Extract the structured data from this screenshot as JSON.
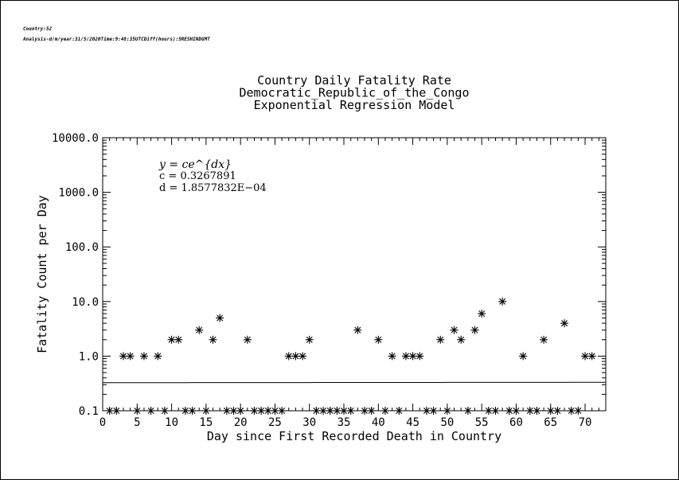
{
  "header": {
    "line1": "Country:52",
    "line2": "Analysis-d/m/year:31/5/2020Time:9:48:35UTCDiff(hours):5RESHINDGMT"
  },
  "chart_data": {
    "type": "scatter",
    "title": [
      "Country Daily Fatality Rate",
      "Democratic_Republic_of_the_Congo",
      "Exponential Regression Model"
    ],
    "xlabel": "Day since First Recorded Death in Country",
    "ylabel": "Fatality Count per Day",
    "xlim": [
      0,
      73
    ],
    "ylim": [
      0.1,
      10000
    ],
    "yscale": "log",
    "xticks": [
      0,
      5,
      10,
      15,
      20,
      25,
      30,
      35,
      40,
      45,
      50,
      55,
      60,
      65,
      70
    ],
    "xtick_labels": [
      "0",
      "5",
      "10",
      "15",
      "20",
      "25",
      "30",
      "35",
      "40",
      "45",
      "50",
      "55",
      "60",
      "65",
      "70"
    ],
    "yticks": [
      0.1,
      1,
      10,
      100,
      1000,
      10000
    ],
    "ytick_labels": [
      "0.1",
      "1.0",
      "10.0",
      "100.0",
      "1000.0",
      "10000.0"
    ],
    "marker": "asterisk",
    "series": [
      {
        "x": [
          1,
          2,
          3,
          4,
          5,
          6,
          7,
          8,
          9,
          10,
          11,
          12,
          13,
          14,
          15,
          16,
          17,
          18,
          19,
          20,
          21,
          22,
          23,
          24,
          25,
          26,
          27,
          28,
          29,
          30,
          31,
          32,
          33,
          34,
          35,
          36,
          37,
          38,
          39,
          40,
          41,
          42,
          43,
          44,
          45,
          46,
          47,
          48,
          49,
          50,
          51,
          52,
          53,
          54,
          55,
          56,
          57,
          58,
          59,
          60,
          61,
          62,
          63,
          64,
          65,
          66,
          67,
          68,
          69,
          70,
          71
        ],
        "y": [
          0.1,
          0.1,
          1,
          1,
          0.1,
          1,
          0.1,
          1,
          0.1,
          2,
          2,
          0.1,
          0.1,
          3,
          0.1,
          2,
          5,
          0.1,
          0.1,
          0.1,
          2,
          0.1,
          0.1,
          0.1,
          0.1,
          0.1,
          1,
          1,
          1,
          2,
          0.1,
          0.1,
          0.1,
          0.1,
          0.1,
          0.1,
          3,
          0.1,
          0.1,
          2,
          0.1,
          1,
          0.1,
          1,
          1,
          1,
          0.1,
          0.1,
          2,
          0.1,
          3,
          2,
          0.1,
          3,
          6,
          0.1,
          0.1,
          10,
          0.1,
          0.1,
          1,
          0.1,
          0.1,
          2,
          0.1,
          0.1,
          4,
          0.1,
          0.1,
          1,
          1
        ]
      }
    ],
    "fit": {
      "model": "y = c e^(dx)",
      "c": 0.3267891,
      "d": 0.00018577832,
      "x_range": [
        0,
        73
      ]
    },
    "annotation": {
      "equation": "y = ce^{dx}",
      "c_text": "c = 0.3267891",
      "d_text": "d = 1.8577832E−04"
    }
  }
}
